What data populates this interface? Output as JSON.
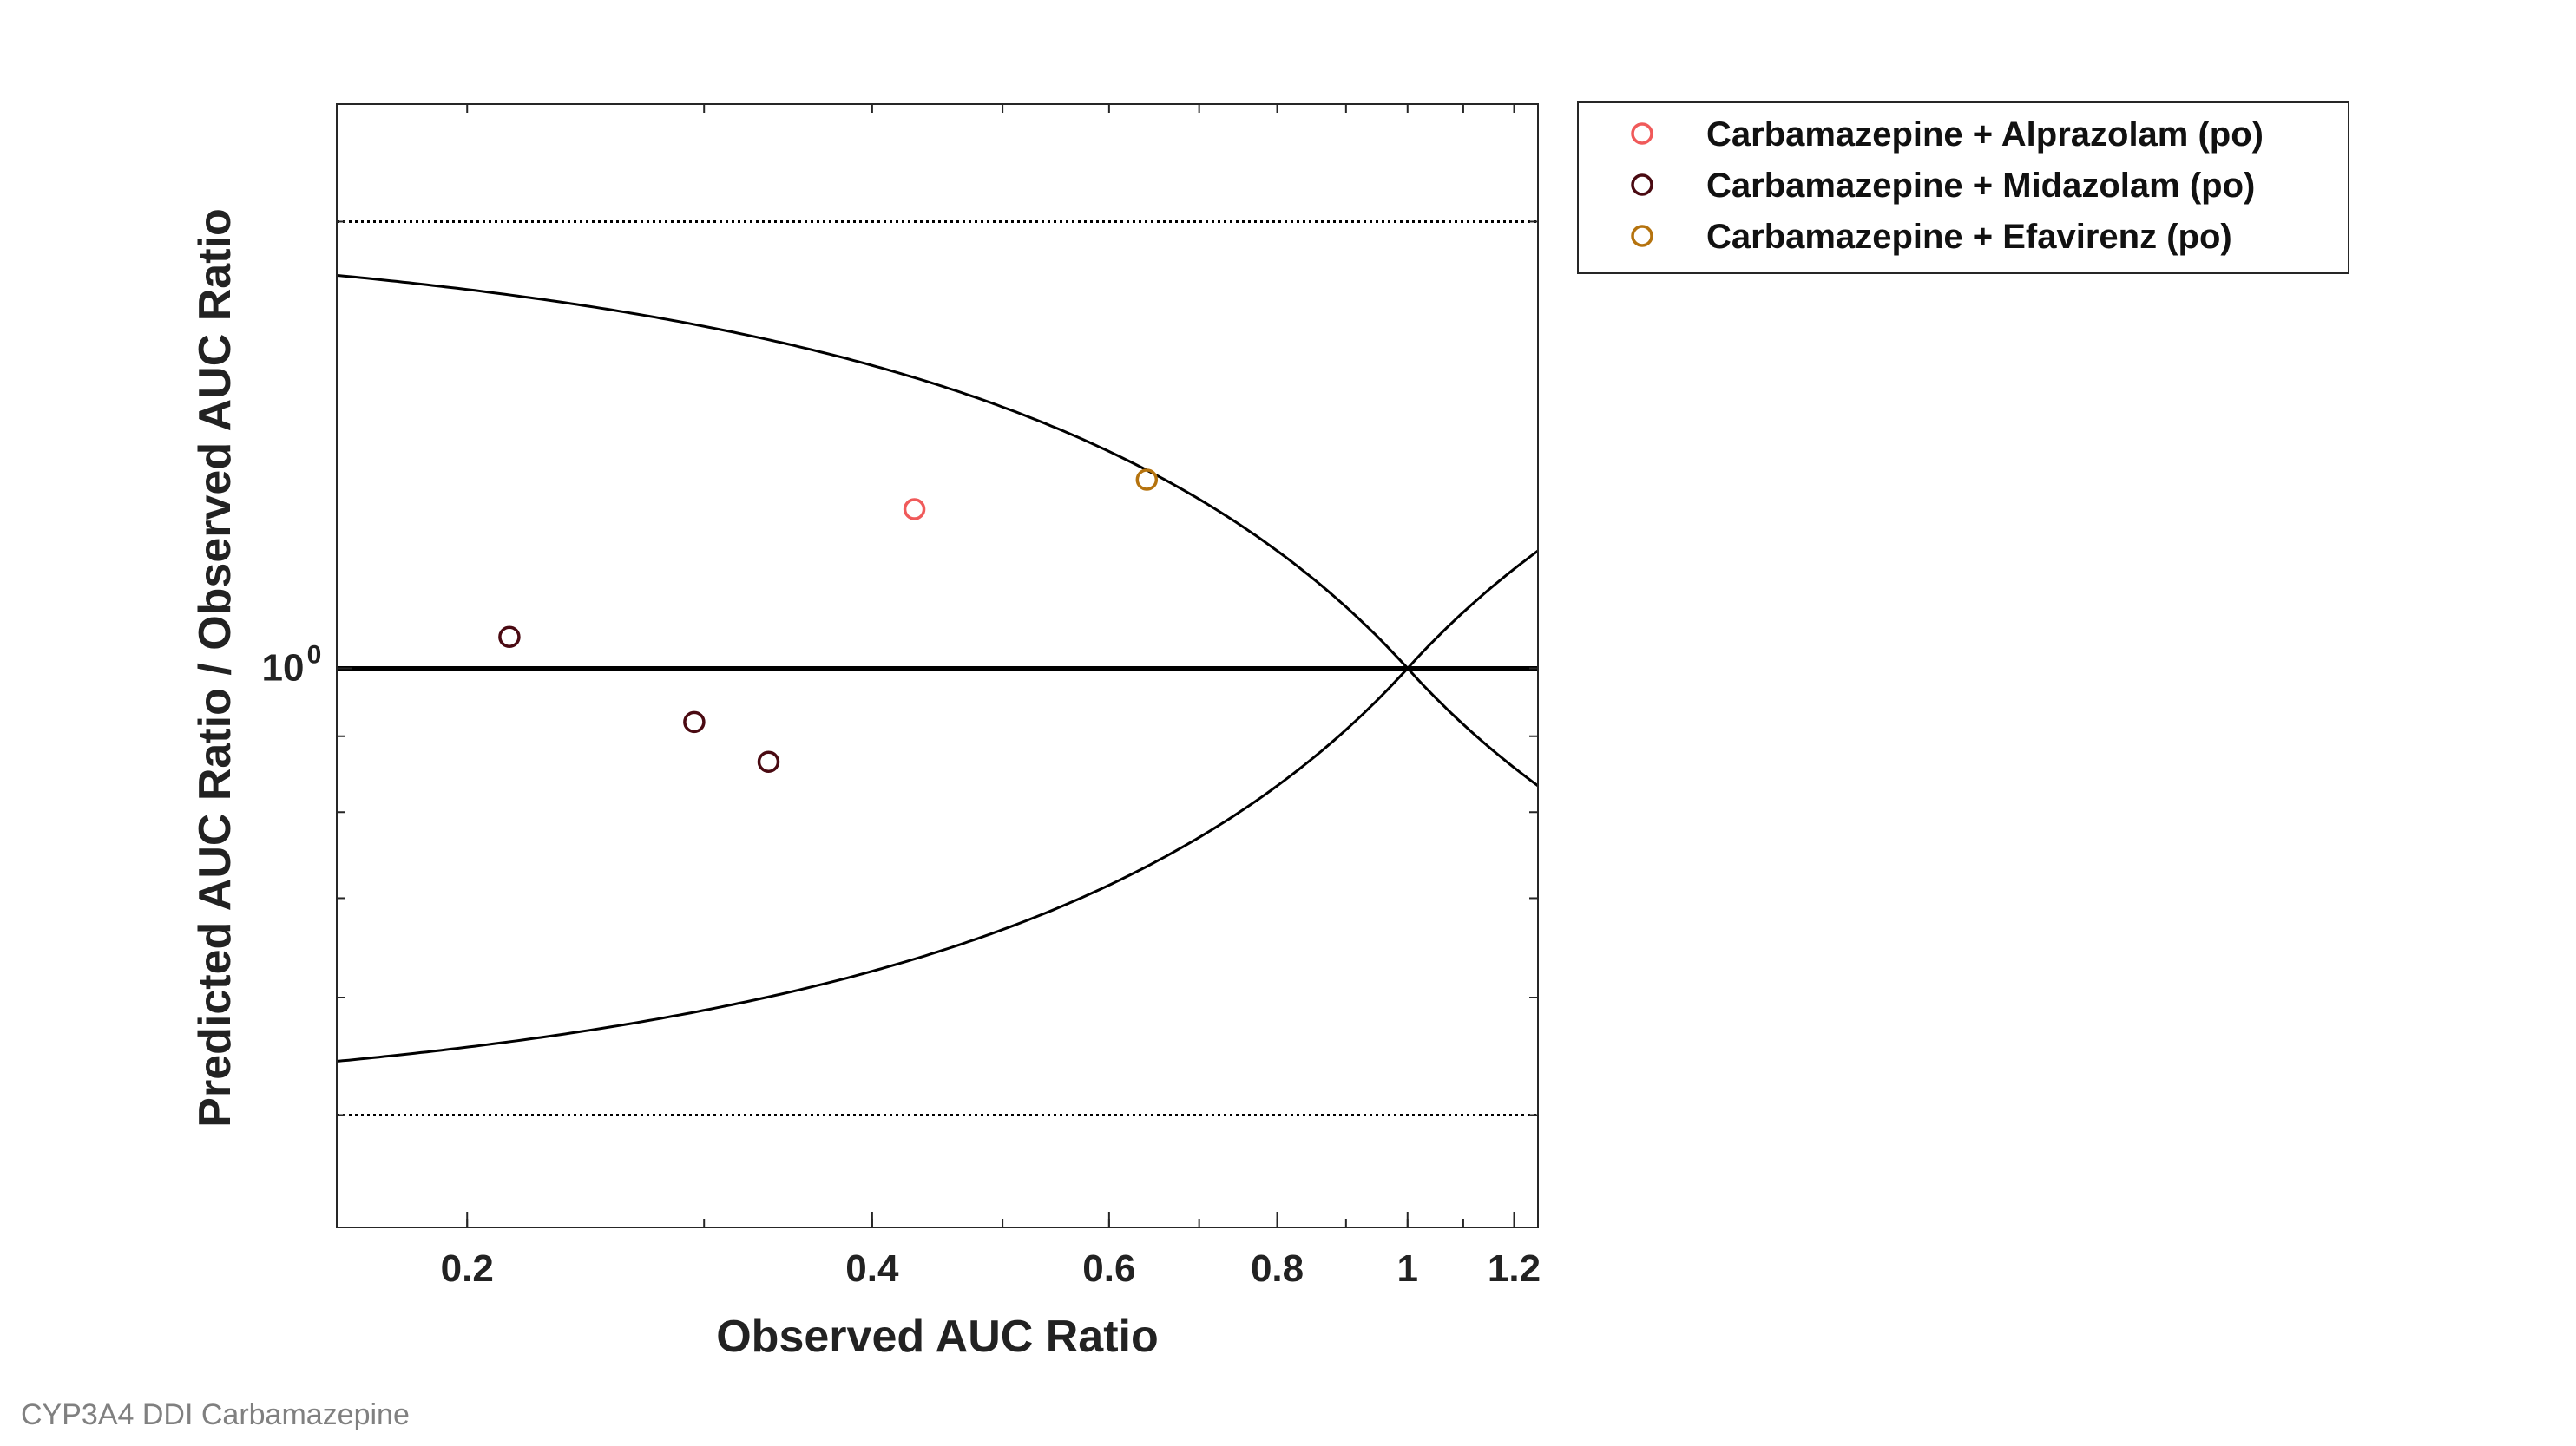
{
  "footer_text": "CYP3A4 DDI Carbamazepine",
  "chart_data": {
    "type": "scatter",
    "xlabel": "Observed AUC Ratio",
    "ylabel": "Predicted AUC Ratio / Observed AUC Ratio",
    "xscale": "log",
    "yscale": "log",
    "xlim": [
      0.16,
      1.25
    ],
    "ylim": [
      0.42,
      2.4
    ],
    "xticks": [
      {
        "value": 0.2,
        "label": "0.2"
      },
      {
        "value": 0.4,
        "label": "0.4"
      },
      {
        "value": 0.6,
        "label": "0.6"
      },
      {
        "value": 0.8,
        "label": "0.8"
      },
      {
        "value": 1.0,
        "label": "1"
      },
      {
        "value": 1.2,
        "label": "1.2"
      }
    ],
    "yticks": [
      {
        "value": 1.0,
        "label_base": "10",
        "label_exp": "0"
      }
    ],
    "reference_lines": {
      "unity": 1.0,
      "twofold_upper": 2.0,
      "twofold_lower": 0.5,
      "guest_limit_delta": 1
    },
    "legend_position": "top-right outside",
    "grid": false,
    "series": [
      {
        "name": "Carbamazepine + Alprazolam (po)",
        "color": "#f05a5a",
        "marker": "open-circle",
        "points": [
          {
            "x": 0.43,
            "y": 1.28
          }
        ]
      },
      {
        "name": "Carbamazepine + Midazolam (po)",
        "color": "#4a0a12",
        "marker": "open-circle",
        "points": [
          {
            "x": 0.215,
            "y": 1.05
          },
          {
            "x": 0.295,
            "y": 0.92
          },
          {
            "x": 0.335,
            "y": 0.865
          }
        ]
      },
      {
        "name": "Carbamazepine + Efavirenz (po)",
        "color": "#b5730e",
        "marker": "open-circle",
        "points": [
          {
            "x": 0.64,
            "y": 1.34
          }
        ]
      }
    ]
  }
}
